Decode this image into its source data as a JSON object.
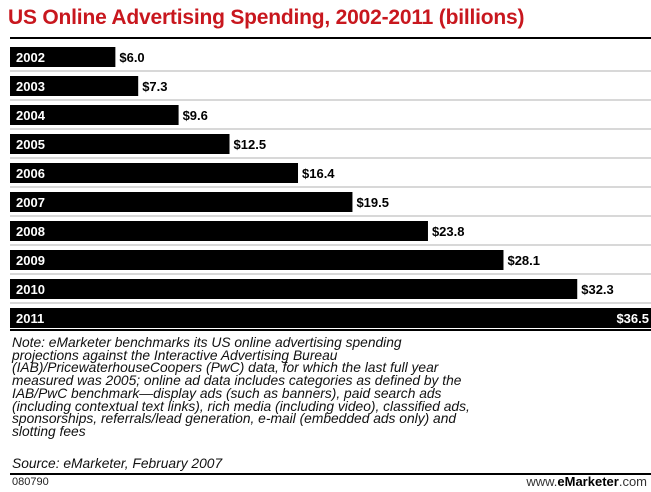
{
  "chart_data": {
    "type": "bar",
    "orientation": "horizontal",
    "title": "US Online Advertising Spending, 2002-2011 (billions)",
    "categories": [
      "2002",
      "2003",
      "2004",
      "2005",
      "2006",
      "2007",
      "2008",
      "2009",
      "2010",
      "2011"
    ],
    "values": [
      6.0,
      7.3,
      9.6,
      12.5,
      16.4,
      19.5,
      23.8,
      28.1,
      32.3,
      36.5
    ],
    "value_labels": [
      "$6.0",
      "$7.3",
      "$9.6",
      "$12.5",
      "$16.4",
      "$19.5",
      "$23.8",
      "$28.1",
      "$32.3",
      "$36.5"
    ],
    "xlim": [
      0,
      36.5
    ],
    "grid": true,
    "bar_color": "#000000",
    "title_color": "#c8171e"
  },
  "note": "Note: eMarketer benchmarks its US online advertising spending\nprojections against the Interactive Advertising Bureau\n(IAB)/PricewaterhouseCoopers (PwC) data, for which the last full year\nmeasured was 2005; online ad data includes categories as defined by the\nIAB/PwC benchmark—display ads (such as banners), paid search ads\n(including contextual text links), rich media (including video), classified ads,\nsponsorships, referrals/lead generation, e-mail (embedded ads only) and\nslotting fees",
  "source": "Source: eMarketer, February 2007",
  "chart_code": "080790",
  "brand": {
    "prefix": "www.",
    "name": "eMarketer",
    "suffix": ".com"
  }
}
